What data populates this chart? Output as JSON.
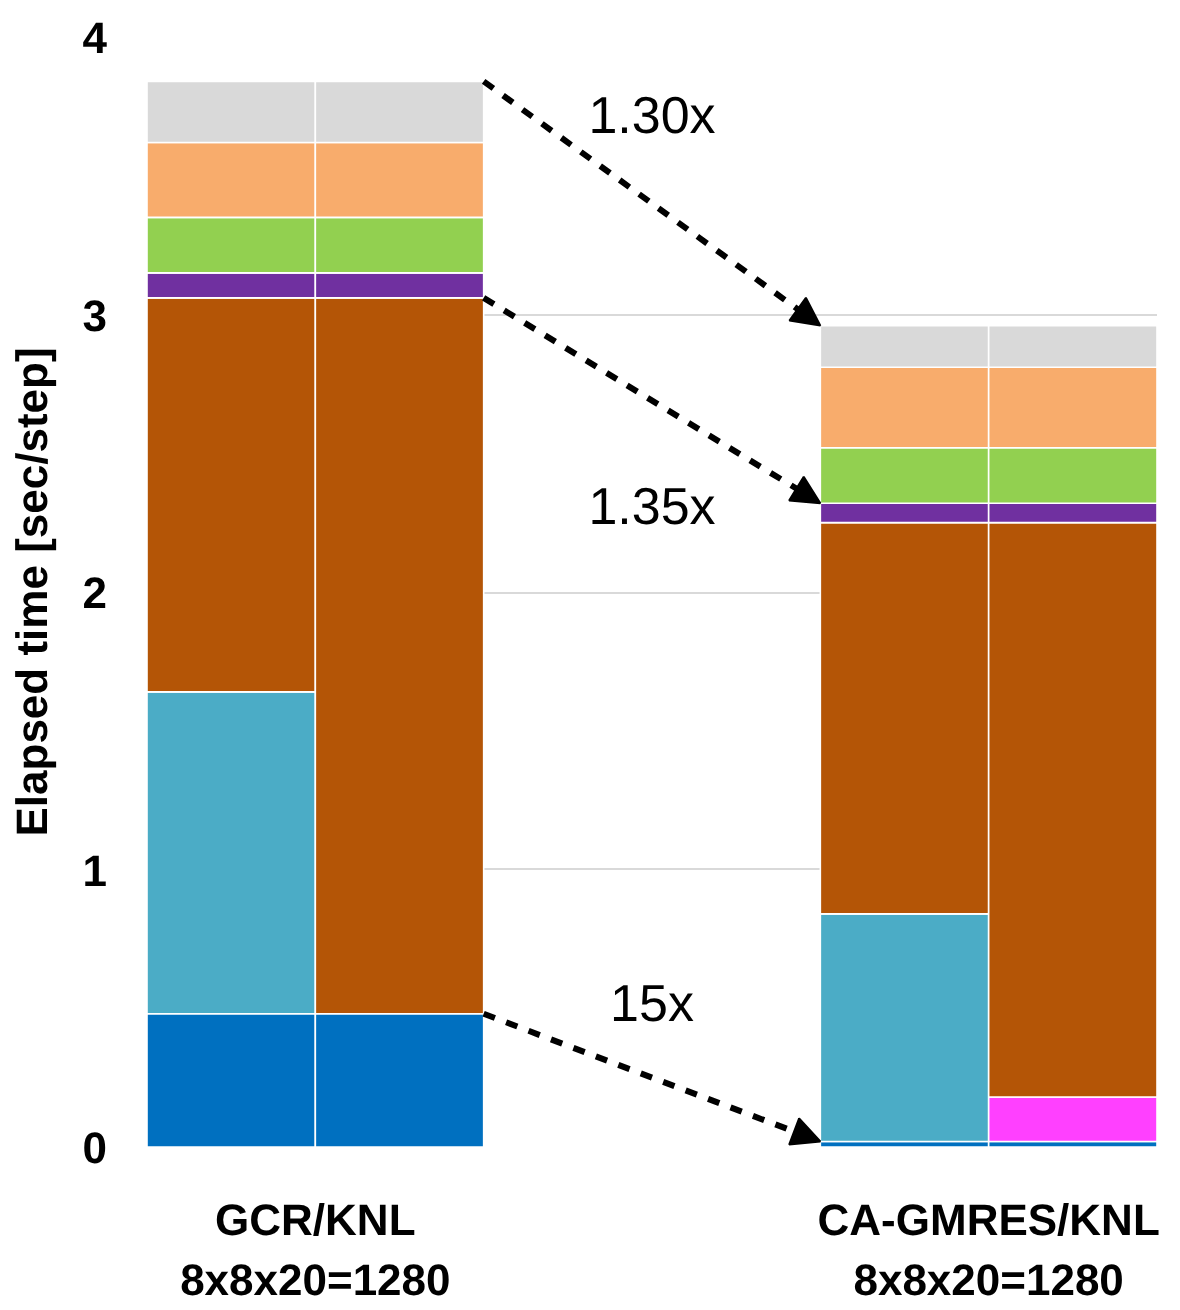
{
  "chart_data": {
    "type": "bar",
    "stacked": true,
    "ylabel": "Elapsed time [sec/step]",
    "categories": [
      "GCR/KNL\n8x8x20=1280",
      null,
      null,
      null,
      "CA-GMRES/KNL\n8x8x20=1280",
      null
    ],
    "ylim": [
      0,
      4
    ],
    "yticks": [
      0,
      1,
      2,
      3,
      4
    ],
    "grid": "y",
    "series": [
      {
        "color": "#0070c0",
        "values": [
          0.48,
          0.48,
          null,
          null,
          0.02,
          0.02
        ]
      },
      {
        "color": "#4bacc6",
        "values": [
          1.16,
          null,
          null,
          null,
          0.82,
          null
        ]
      },
      {
        "color": "#ff40ff",
        "values": [
          null,
          null,
          null,
          null,
          null,
          0.16
        ]
      },
      {
        "color": "#b45506",
        "values": [
          1.42,
          2.58,
          null,
          null,
          1.41,
          2.07
        ]
      },
      {
        "color": "#7030a0",
        "values": [
          0.09,
          0.09,
          null,
          null,
          0.07,
          0.07
        ]
      },
      {
        "color": "#92d050",
        "values": [
          0.2,
          0.2,
          null,
          null,
          0.2,
          0.2
        ]
      },
      {
        "color": "#f8ac6c",
        "values": [
          0.27,
          0.27,
          null,
          null,
          0.29,
          0.29
        ]
      },
      {
        "color": "#d9d9d9",
        "values": [
          0.22,
          0.22,
          null,
          null,
          0.15,
          0.15
        ]
      }
    ],
    "annotations": [
      "1.30x",
      "1.35x",
      "15x"
    ]
  }
}
